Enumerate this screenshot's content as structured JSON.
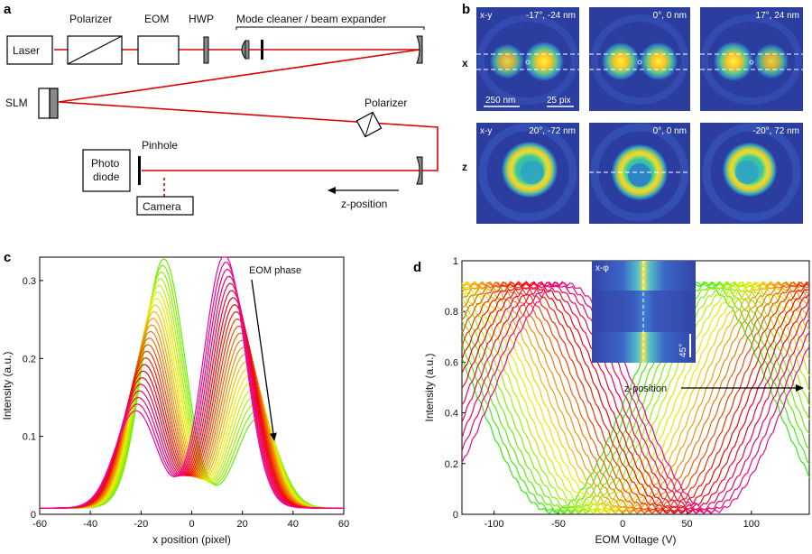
{
  "panels": {
    "a": "a",
    "b": "b",
    "c": "c",
    "d": "d"
  },
  "setup": {
    "laser": "Laser",
    "polarizer1": "Polarizer",
    "eom": "EOM",
    "hwp": "HWP",
    "mode_cleaner": "Mode cleaner / beam expander",
    "slm": "SLM",
    "polarizer2": "Polarizer",
    "photodiode_line1": "Photo",
    "photodiode_line2": "diode",
    "pinhole": "Pinhole",
    "camera": "Camera",
    "zpos": "z-position"
  },
  "psf": {
    "row_x": "x",
    "row_z": "z",
    "cells": [
      {
        "tl": "x-y",
        "tr": "-17°,  -24 nm"
      },
      {
        "tl": "",
        "tr": "0°, 0 nm"
      },
      {
        "tl": "",
        "tr": "17°,  24 nm"
      },
      {
        "tl": "x-y",
        "tr": "20°,  -72 nm"
      },
      {
        "tl": "",
        "tr": "0°, 0 nm"
      },
      {
        "tl": "",
        "tr": "-20°,  72 nm"
      }
    ],
    "scale_nm": "250 nm",
    "scale_pix": "25 pix"
  },
  "chart_data": [
    {
      "type": "line",
      "panel": "c",
      "xlabel": "x position (pixel)",
      "ylabel": "Intensity (a.u.)",
      "xlim": [
        -60,
        60
      ],
      "ylim": [
        0,
        0.33
      ],
      "xticks": [
        "-60",
        "-40",
        "-20",
        "0",
        "20",
        "40",
        "60"
      ],
      "yticks": [
        "0",
        "0.1",
        "0.2",
        "0.3"
      ],
      "annotation": "EOM phase",
      "n_series": 24,
      "peak_range": {
        "left": [
          0.32,
          0.125
        ],
        "right": [
          0.115,
          0.325
        ]
      }
    },
    {
      "type": "line",
      "panel": "d",
      "xlabel": "EOM Voltage (V)",
      "ylabel": "Intensity (a.u.)",
      "xlim": [
        -125,
        145
      ],
      "ylim": [
        0,
        1
      ],
      "xticks": [
        "-100",
        "-50",
        "0",
        "50",
        "100"
      ],
      "yticks": [
        "0",
        "0.2",
        "0.4",
        "0.6",
        "0.8",
        "1"
      ],
      "annotation": "z-position",
      "inset_label": "x-φ",
      "inset_scale": "45°",
      "n_series": 26,
      "minimum_range_V": [
        -55,
        70
      ]
    }
  ],
  "colors": {
    "beam": "#d90000",
    "psf_bg": "#2b3d9e"
  }
}
